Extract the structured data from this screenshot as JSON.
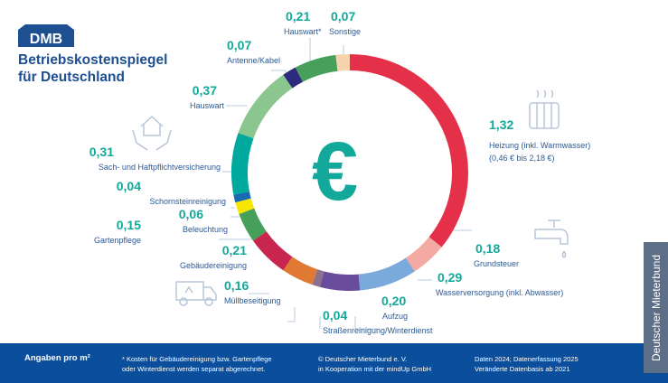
{
  "brand": {
    "logo_text": "DMB",
    "title_line1": "Betriebskostenspiegel",
    "title_line2": "für Deutschland"
  },
  "center_symbol": "€",
  "chart_data": {
    "type": "pie",
    "subtype": "donut",
    "unit": "€ pro m²",
    "categories": [
      "Heizung (inkl. Warmwasser)",
      "Grundsteuer",
      "Wasserversorgung (inkl. Abwasser)",
      "Aufzug",
      "Straßenreinigung/Winterdienst",
      "Müllbeseitigung",
      "Gebäudereinigung",
      "Gartenpflege",
      "Beleuchtung",
      "Schornsteinreinigung",
      "Sach- und Haftpflichtversicherung",
      "Hauswart",
      "Antenne/Kabel",
      "Hauswart*",
      "Sonstige"
    ],
    "values": [
      1.32,
      0.18,
      0.29,
      0.2,
      0.04,
      0.16,
      0.21,
      0.15,
      0.06,
      0.04,
      0.31,
      0.37,
      0.07,
      0.21,
      0.07
    ],
    "value_labels": [
      "1,32",
      "0,18",
      "0,29",
      "0,20",
      "0,04",
      "0,16",
      "0,21",
      "0,15",
      "0,06",
      "0,04",
      "0,31",
      "0,37",
      "0,07",
      "0,21",
      "0,07"
    ],
    "colors": [
      "#e5304a",
      "#f3aaa3",
      "#7aa9dc",
      "#6a4c9c",
      "#8b6f8c",
      "#e07a32",
      "#c8254f",
      "#46a05a",
      "#f6e600",
      "#1769b4",
      "#00a99d",
      "#8cc68f",
      "#2e2a7e",
      "#46a05a",
      "#f7d3ad"
    ],
    "heizung_range": "(0,46 € bis 2,18 €)"
  },
  "footer": {
    "unit": "Angaben pro m²",
    "note_line1": "* Kosten für Gebäudereinigung bzw. Gartenpflege",
    "note_line2": "oder Winterdienst werden separat abgerechnet.",
    "copyright_line1": "© Deutscher Mieterbund e. V.",
    "copyright_line2": "in Kooperation mit der mindUp GmbH",
    "data_line1": "Daten 2024; Datenerfassung 2025",
    "data_line2": "Veränderte Datenbasis ab 2021"
  },
  "side_tab": "Deutscher Mieterbund"
}
